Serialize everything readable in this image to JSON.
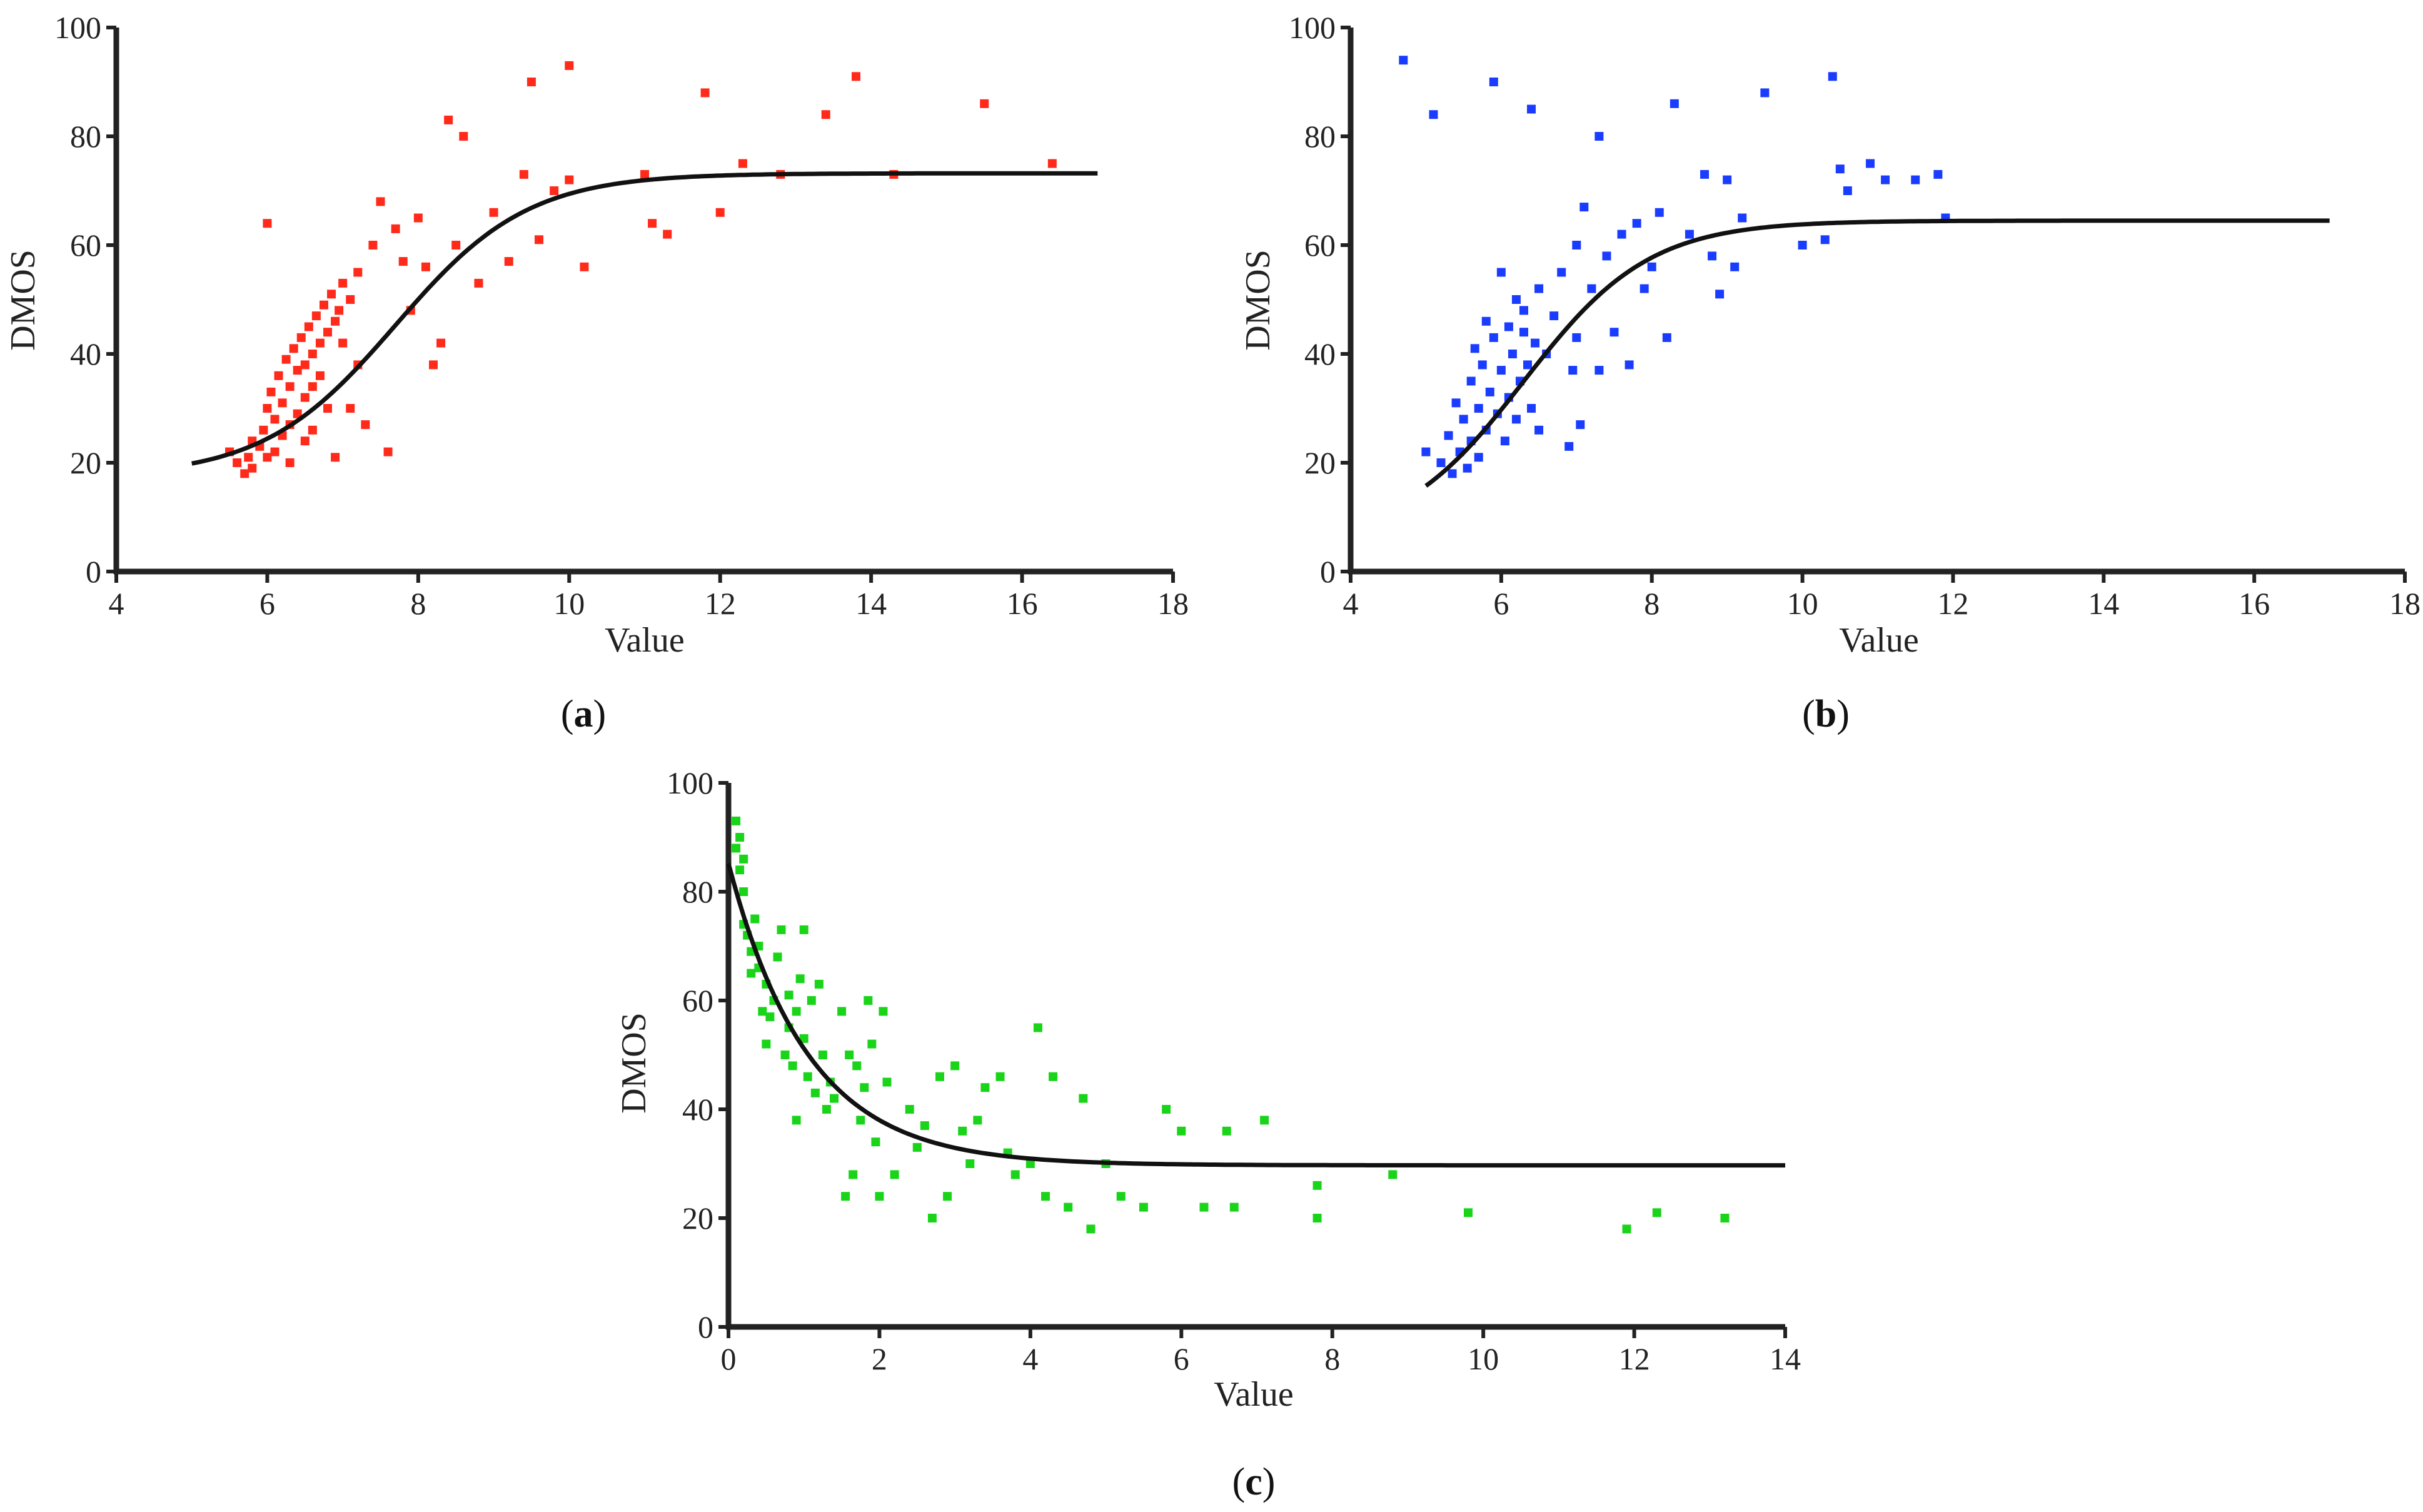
{
  "chart_data": [
    {
      "type": "scatter",
      "panel_label": "a",
      "xlabel": "Value",
      "ylabel": "DMOS",
      "xlim": [
        4,
        18
      ],
      "ylim": [
        0,
        100
      ],
      "xticks": [
        "4",
        "6",
        "8",
        "10",
        "12",
        "14",
        "16",
        "18"
      ],
      "yticks": [
        "0",
        "20",
        "40",
        "60",
        "80",
        "100"
      ],
      "marker_color": "#ff2a1a",
      "fit_curve": {
        "model": "logistic",
        "L": 73.2,
        "b": 17.4,
        "k": 1.14,
        "x0": 7.7,
        "x_range": [
          5.0,
          17.0
        ]
      },
      "points": [
        [
          5.5,
          22
        ],
        [
          5.6,
          20
        ],
        [
          5.7,
          18
        ],
        [
          5.75,
          21
        ],
        [
          5.8,
          24
        ],
        [
          5.8,
          19
        ],
        [
          5.9,
          23
        ],
        [
          5.95,
          26
        ],
        [
          6.0,
          30
        ],
        [
          6.0,
          21
        ],
        [
          6.05,
          33
        ],
        [
          6.1,
          28
        ],
        [
          6.1,
          22
        ],
        [
          6.15,
          36
        ],
        [
          6.2,
          31
        ],
        [
          6.2,
          25
        ],
        [
          6.25,
          39
        ],
        [
          6.3,
          34
        ],
        [
          6.3,
          27
        ],
        [
          6.3,
          20
        ],
        [
          6.35,
          41
        ],
        [
          6.4,
          37
        ],
        [
          6.4,
          29
        ],
        [
          6.45,
          43
        ],
        [
          6.5,
          38
        ],
        [
          6.5,
          32
        ],
        [
          6.5,
          24
        ],
        [
          6.55,
          45
        ],
        [
          6.6,
          40
        ],
        [
          6.6,
          34
        ],
        [
          6.6,
          26
        ],
        [
          6.65,
          47
        ],
        [
          6.7,
          42
        ],
        [
          6.7,
          36
        ],
        [
          6.75,
          49
        ],
        [
          6.8,
          44
        ],
        [
          6.8,
          30
        ],
        [
          6.85,
          51
        ],
        [
          6.9,
          46
        ],
        [
          6.9,
          21
        ],
        [
          6.95,
          48
        ],
        [
          7.0,
          53
        ],
        [
          7.0,
          42
        ],
        [
          7.1,
          50
        ],
        [
          7.1,
          30
        ],
        [
          7.2,
          55
        ],
        [
          7.2,
          38
        ],
        [
          7.3,
          27
        ],
        [
          7.4,
          60
        ],
        [
          7.5,
          68
        ],
        [
          7.6,
          22
        ],
        [
          7.7,
          63
        ],
        [
          7.8,
          57
        ],
        [
          7.9,
          48
        ],
        [
          8.0,
          65
        ],
        [
          8.1,
          56
        ],
        [
          8.2,
          38
        ],
        [
          8.3,
          42
        ],
        [
          8.4,
          83
        ],
        [
          8.5,
          60
        ],
        [
          8.6,
          80
        ],
        [
          8.8,
          53
        ],
        [
          9.0,
          66
        ],
        [
          9.2,
          57
        ],
        [
          9.4,
          73
        ],
        [
          9.5,
          90
        ],
        [
          9.6,
          61
        ],
        [
          9.8,
          70
        ],
        [
          10.0,
          93
        ],
        [
          10.0,
          72
        ],
        [
          10.2,
          56
        ],
        [
          11.0,
          73
        ],
        [
          11.1,
          64
        ],
        [
          11.3,
          62
        ],
        [
          11.8,
          88
        ],
        [
          12.0,
          66
        ],
        [
          12.3,
          75
        ],
        [
          12.8,
          73
        ],
        [
          13.4,
          84
        ],
        [
          13.8,
          91
        ],
        [
          14.3,
          73
        ],
        [
          15.5,
          86
        ],
        [
          16.4,
          75
        ],
        [
          6.0,
          64
        ]
      ]
    },
    {
      "type": "scatter",
      "panel_label": "b",
      "xlabel": "Value",
      "ylabel": "DMOS",
      "xlim": [
        4,
        18
      ],
      "ylim": [
        0,
        100
      ],
      "xticks": [
        "4",
        "6",
        "8",
        "10",
        "12",
        "14",
        "16",
        "18"
      ],
      "yticks": [
        "0",
        "20",
        "40",
        "60",
        "80",
        "100"
      ],
      "marker_color": "#1a3cff",
      "fit_curve": {
        "model": "logistic",
        "L": 64.5,
        "b": 5.5,
        "k": 1.2,
        "x0": 6.3,
        "x_range": [
          5.0,
          17.0
        ]
      },
      "points": [
        [
          4.7,
          94
        ],
        [
          5.0,
          22
        ],
        [
          5.1,
          84
        ],
        [
          5.2,
          20
        ],
        [
          5.3,
          25
        ],
        [
          5.35,
          18
        ],
        [
          5.4,
          31
        ],
        [
          5.45,
          22
        ],
        [
          5.5,
          28
        ],
        [
          5.55,
          19
        ],
        [
          5.6,
          35
        ],
        [
          5.6,
          24
        ],
        [
          5.65,
          41
        ],
        [
          5.7,
          30
        ],
        [
          5.7,
          21
        ],
        [
          5.75,
          38
        ],
        [
          5.8,
          46
        ],
        [
          5.8,
          26
        ],
        [
          5.85,
          33
        ],
        [
          5.9,
          43
        ],
        [
          5.9,
          90
        ],
        [
          5.95,
          29
        ],
        [
          6.0,
          55
        ],
        [
          6.0,
          37
        ],
        [
          6.05,
          24
        ],
        [
          6.1,
          45
        ],
        [
          6.1,
          32
        ],
        [
          6.15,
          40
        ],
        [
          6.2,
          50
        ],
        [
          6.2,
          28
        ],
        [
          6.25,
          35
        ],
        [
          6.3,
          44
        ],
        [
          6.3,
          48
        ],
        [
          6.35,
          38
        ],
        [
          6.4,
          85
        ],
        [
          6.4,
          30
        ],
        [
          6.45,
          42
        ],
        [
          6.5,
          52
        ],
        [
          6.5,
          26
        ],
        [
          6.6,
          40
        ],
        [
          6.7,
          47
        ],
        [
          6.8,
          55
        ],
        [
          6.9,
          23
        ],
        [
          6.95,
          37
        ],
        [
          7.0,
          60
        ],
        [
          7.0,
          43
        ],
        [
          7.05,
          27
        ],
        [
          7.1,
          67
        ],
        [
          7.2,
          52
        ],
        [
          7.3,
          80
        ],
        [
          7.3,
          37
        ],
        [
          7.4,
          58
        ],
        [
          7.5,
          44
        ],
        [
          7.6,
          62
        ],
        [
          7.7,
          38
        ],
        [
          7.8,
          64
        ],
        [
          7.9,
          52
        ],
        [
          8.0,
          56
        ],
        [
          8.1,
          66
        ],
        [
          8.2,
          43
        ],
        [
          8.3,
          86
        ],
        [
          8.5,
          62
        ],
        [
          8.7,
          73
        ],
        [
          8.8,
          58
        ],
        [
          8.9,
          51
        ],
        [
          9.0,
          72
        ],
        [
          9.1,
          56
        ],
        [
          9.2,
          65
        ],
        [
          9.5,
          88
        ],
        [
          10.0,
          60
        ],
        [
          10.3,
          61
        ],
        [
          10.4,
          91
        ],
        [
          10.5,
          74
        ],
        [
          10.6,
          70
        ],
        [
          10.9,
          75
        ],
        [
          11.1,
          72
        ],
        [
          11.5,
          72
        ],
        [
          11.8,
          73
        ],
        [
          11.9,
          65
        ]
      ]
    },
    {
      "type": "scatter",
      "panel_label": "c",
      "xlabel": "Value",
      "ylabel": "DMOS",
      "xlim": [
        0,
        14
      ],
      "ylim": [
        0,
        100
      ],
      "xticks": [
        "0",
        "2",
        "4",
        "6",
        "8",
        "10",
        "12",
        "14"
      ],
      "yticks": [
        "0",
        "20",
        "40",
        "60",
        "80",
        "100"
      ],
      "marker_color": "#1ad41a",
      "fit_curve": {
        "model": "exp_decay",
        "A": 55.5,
        "b": 29.7,
        "k": 0.95,
        "x_range": [
          0.0,
          14.0
        ]
      },
      "points": [
        [
          0.1,
          93
        ],
        [
          0.1,
          88
        ],
        [
          0.15,
          90
        ],
        [
          0.15,
          84
        ],
        [
          0.2,
          86
        ],
        [
          0.2,
          80
        ],
        [
          0.2,
          74
        ],
        [
          0.25,
          72
        ],
        [
          0.3,
          69
        ],
        [
          0.3,
          65
        ],
        [
          0.35,
          75
        ],
        [
          0.4,
          66
        ],
        [
          0.4,
          70
        ],
        [
          0.45,
          58
        ],
        [
          0.5,
          52
        ],
        [
          0.5,
          63
        ],
        [
          0.55,
          57
        ],
        [
          0.6,
          60
        ],
        [
          0.65,
          68
        ],
        [
          0.7,
          73
        ],
        [
          0.75,
          50
        ],
        [
          0.8,
          55
        ],
        [
          0.8,
          61
        ],
        [
          0.85,
          48
        ],
        [
          0.9,
          58
        ],
        [
          0.9,
          38
        ],
        [
          0.95,
          64
        ],
        [
          1.0,
          53
        ],
        [
          1.0,
          73
        ],
        [
          1.05,
          46
        ],
        [
          1.1,
          60
        ],
        [
          1.15,
          43
        ],
        [
          1.2,
          63
        ],
        [
          1.25,
          50
        ],
        [
          1.3,
          40
        ],
        [
          1.35,
          45
        ],
        [
          1.4,
          42
        ],
        [
          1.5,
          58
        ],
        [
          1.55,
          24
        ],
        [
          1.6,
          50
        ],
        [
          1.65,
          28
        ],
        [
          1.7,
          48
        ],
        [
          1.75,
          38
        ],
        [
          1.8,
          44
        ],
        [
          1.85,
          60
        ],
        [
          1.9,
          52
        ],
        [
          1.95,
          34
        ],
        [
          2.0,
          24
        ],
        [
          2.05,
          58
        ],
        [
          2.1,
          45
        ],
        [
          2.2,
          28
        ],
        [
          2.4,
          40
        ],
        [
          2.5,
          33
        ],
        [
          2.6,
          37
        ],
        [
          2.7,
          20
        ],
        [
          2.8,
          46
        ],
        [
          2.9,
          24
        ],
        [
          3.0,
          48
        ],
        [
          3.1,
          36
        ],
        [
          3.2,
          30
        ],
        [
          3.3,
          38
        ],
        [
          3.4,
          44
        ],
        [
          3.6,
          46
        ],
        [
          3.7,
          32
        ],
        [
          3.8,
          28
        ],
        [
          4.0,
          30
        ],
        [
          4.1,
          55
        ],
        [
          4.2,
          24
        ],
        [
          4.3,
          46
        ],
        [
          4.5,
          22
        ],
        [
          4.7,
          42
        ],
        [
          4.8,
          18
        ],
        [
          5.0,
          30
        ],
        [
          5.2,
          24
        ],
        [
          5.5,
          22
        ],
        [
          5.8,
          40
        ],
        [
          6.0,
          36
        ],
        [
          6.3,
          22
        ],
        [
          6.6,
          36
        ],
        [
          6.7,
          22
        ],
        [
          7.1,
          38
        ],
        [
          7.8,
          20
        ],
        [
          7.8,
          26
        ],
        [
          8.8,
          28
        ],
        [
          9.8,
          21
        ],
        [
          11.9,
          18
        ],
        [
          12.3,
          21
        ],
        [
          13.2,
          20
        ]
      ]
    }
  ]
}
